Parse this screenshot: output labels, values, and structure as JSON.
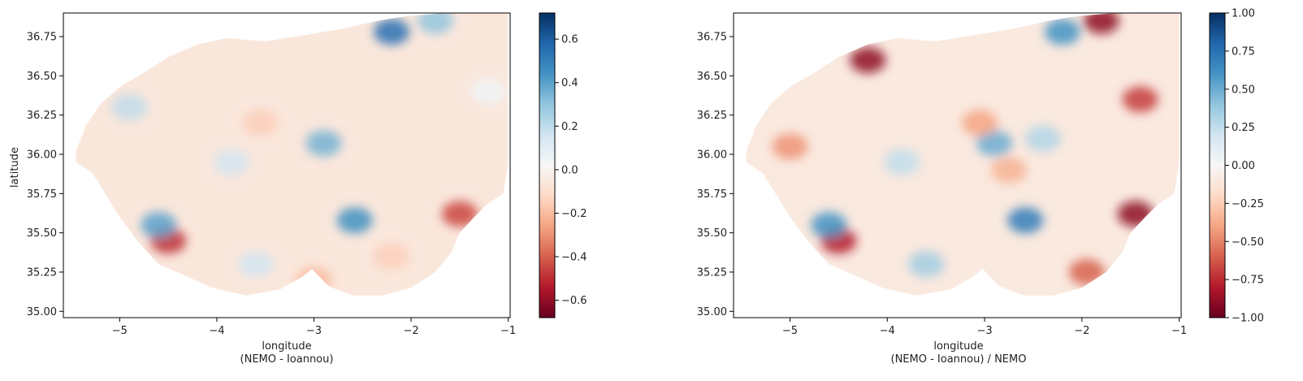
{
  "chart_data": [
    {
      "type": "heatmap",
      "title": "",
      "xlabel": "longitude\n(NEMO - Ioannou)",
      "ylabel": "latitude",
      "xticks": [
        -5,
        -4,
        -3,
        -2,
        -1
      ],
      "xtick_labels": [
        "−5",
        "−4",
        "−3",
        "−2",
        "−1"
      ],
      "yticks": [
        35.0,
        35.25,
        35.5,
        35.75,
        36.0,
        36.25,
        36.5,
        36.75
      ],
      "ytick_labels": [
        "35.00",
        "35.25",
        "35.50",
        "35.75",
        "36.00",
        "36.25",
        "36.50",
        "36.75"
      ],
      "xlim": [
        -5.58,
        -0.98
      ],
      "ylim": [
        34.96,
        36.9
      ],
      "colormap": "RdBu",
      "colorbar": {
        "vmin": -0.68,
        "vmax": 0.72,
        "ticks": [
          -0.6,
          -0.4,
          -0.2,
          0.0,
          0.2,
          0.4,
          0.6
        ],
        "tick_labels": [
          "−0.6",
          "−0.4",
          "−0.2",
          "0.0",
          "0.2",
          "0.4",
          "0.6"
        ]
      },
      "features": [
        {
          "lon": -1.5,
          "lat": 35.62,
          "value": -0.45
        },
        {
          "lon": -4.5,
          "lat": 35.45,
          "value": -0.5
        },
        {
          "lon": -4.6,
          "lat": 35.55,
          "value": 0.4
        },
        {
          "lon": -2.58,
          "lat": 35.58,
          "value": 0.45
        },
        {
          "lon": -2.2,
          "lat": 36.78,
          "value": 0.55
        },
        {
          "lon": -2.9,
          "lat": 36.07,
          "value": 0.35
        },
        {
          "lon": -3.55,
          "lat": 36.2,
          "value": -0.15
        },
        {
          "lon": -4.9,
          "lat": 36.3,
          "value": 0.2
        },
        {
          "lon": -3.85,
          "lat": 35.95,
          "value": 0.15
        },
        {
          "lon": -2.2,
          "lat": 35.35,
          "value": -0.15
        },
        {
          "lon": -1.75,
          "lat": 36.85,
          "value": 0.3
        },
        {
          "lon": -1.2,
          "lat": 36.4,
          "value": 0.05
        },
        {
          "lon": -3.0,
          "lat": 35.2,
          "value": -0.2
        },
        {
          "lon": -3.6,
          "lat": 35.3,
          "value": 0.15
        }
      ]
    },
    {
      "type": "heatmap",
      "title": "",
      "xlabel": "longitude\n(NEMO - Ioannou) / NEMO",
      "ylabel": "",
      "xticks": [
        -5,
        -4,
        -3,
        -2,
        -1
      ],
      "xtick_labels": [
        "−5",
        "−4",
        "−3",
        "−2",
        "−1"
      ],
      "yticks": [
        35.0,
        35.25,
        35.5,
        35.75,
        36.0,
        36.25,
        36.5,
        36.75
      ],
      "ytick_labels": [
        "35.00",
        "35.25",
        "35.50",
        "35.75",
        "36.00",
        "36.25",
        "36.50",
        "36.75"
      ],
      "xlim": [
        -5.58,
        -0.98
      ],
      "ylim": [
        34.96,
        36.9
      ],
      "colormap": "RdBu",
      "colorbar": {
        "vmin": -1.0,
        "vmax": 1.0,
        "ticks": [
          -1.0,
          -0.75,
          -0.5,
          -0.25,
          0.0,
          0.25,
          0.5,
          0.75,
          1.0
        ],
        "tick_labels": [
          "−1.00",
          "−0.75",
          "−0.50",
          "−0.25",
          "0.00",
          "0.25",
          "0.50",
          "0.75",
          "1.00"
        ]
      },
      "features": [
        {
          "lon": -1.45,
          "lat": 35.62,
          "value": -0.9
        },
        {
          "lon": -4.2,
          "lat": 36.6,
          "value": -0.9
        },
        {
          "lon": -4.5,
          "lat": 35.45,
          "value": -0.8
        },
        {
          "lon": -1.8,
          "lat": 36.85,
          "value": -0.9
        },
        {
          "lon": -1.4,
          "lat": 36.35,
          "value": -0.7
        },
        {
          "lon": -2.58,
          "lat": 35.58,
          "value": 0.7
        },
        {
          "lon": -4.6,
          "lat": 35.55,
          "value": 0.6
        },
        {
          "lon": -2.2,
          "lat": 36.78,
          "value": 0.6
        },
        {
          "lon": -2.9,
          "lat": 36.07,
          "value": 0.5
        },
        {
          "lon": -5.0,
          "lat": 36.05,
          "value": -0.45
        },
        {
          "lon": -3.05,
          "lat": 36.2,
          "value": -0.4
        },
        {
          "lon": -3.85,
          "lat": 35.95,
          "value": 0.25
        },
        {
          "lon": -2.4,
          "lat": 36.1,
          "value": 0.3
        },
        {
          "lon": -1.95,
          "lat": 35.25,
          "value": -0.6
        },
        {
          "lon": -3.6,
          "lat": 35.3,
          "value": 0.35
        },
        {
          "lon": -2.75,
          "lat": 35.9,
          "value": -0.35
        }
      ]
    }
  ]
}
